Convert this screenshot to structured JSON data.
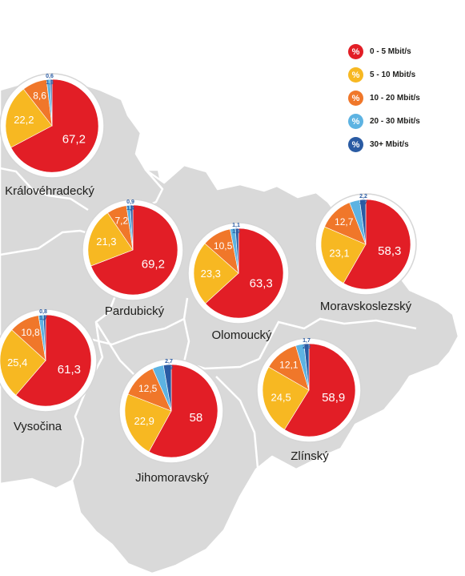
{
  "legend": {
    "items": [
      {
        "icon": "%",
        "label": "0 - 5 Mbit/s",
        "color": "#e21e26"
      },
      {
        "icon": "%",
        "label": "5 - 10 Mbit/s",
        "color": "#f7b822"
      },
      {
        "icon": "%",
        "label": "10 - 20 Mbit/s",
        "color": "#f0772a"
      },
      {
        "icon": "%",
        "label": "20 - 30 Mbit/s",
        "color": "#5db3e2"
      },
      {
        "icon": "%",
        "label": "30+ Mbit/s",
        "color": "#2a5ba3"
      }
    ]
  },
  "chart_data": [
    {
      "type": "pie",
      "title": "Královéhradecký",
      "categories": [
        "0 - 5 Mbit/s",
        "5 - 10 Mbit/s",
        "10 - 20 Mbit/s",
        "20 - 30 Mbit/s",
        "30+ Mbit/s"
      ],
      "values": [
        67.2,
        22.2,
        8.6,
        1.3,
        0.6
      ],
      "labels": [
        "67,2",
        "22,2",
        "8,6",
        "1,3",
        "0,6"
      ]
    },
    {
      "type": "pie",
      "title": "Pardubický",
      "categories": [
        "0 - 5 Mbit/s",
        "5 - 10 Mbit/s",
        "10 - 20 Mbit/s",
        "20 - 30 Mbit/s",
        "30+ Mbit/s"
      ],
      "values": [
        69.2,
        21.3,
        7.2,
        1.4,
        0.9
      ],
      "labels": [
        "69,2",
        "21,3",
        "7,2",
        "1,4",
        "0,9"
      ]
    },
    {
      "type": "pie",
      "title": "Olomoucký",
      "categories": [
        "0 - 5 Mbit/s",
        "5 - 10 Mbit/s",
        "10 - 20 Mbit/s",
        "20 - 30 Mbit/s",
        "30+ Mbit/s"
      ],
      "values": [
        63.3,
        23.3,
        10.5,
        1.9,
        1.1
      ],
      "labels": [
        "63,3",
        "23,3",
        "10,5",
        "1,9",
        "1,1"
      ]
    },
    {
      "type": "pie",
      "title": "Moravskoslezský",
      "categories": [
        "0 - 5 Mbit/s",
        "5 - 10 Mbit/s",
        "10 - 20 Mbit/s",
        "20 - 30 Mbit/s",
        "30+ Mbit/s"
      ],
      "values": [
        58.3,
        23.1,
        12.7,
        3.7,
        2.2
      ],
      "labels": [
        "58,3",
        "23,1",
        "12,7",
        "3,7",
        "2,2"
      ]
    },
    {
      "type": "pie",
      "title": "Vysočina",
      "categories": [
        "0 - 5 Mbit/s",
        "5 - 10 Mbit/s",
        "10 - 20 Mbit/s",
        "20 - 30 Mbit/s",
        "30+ Mbit/s"
      ],
      "values": [
        61.3,
        25.4,
        10.8,
        1.7,
        0.8
      ],
      "labels": [
        "61,3",
        "25,4",
        "10,8",
        "1,7",
        "0,8"
      ]
    },
    {
      "type": "pie",
      "title": "Jihomoravský",
      "categories": [
        "0 - 5 Mbit/s",
        "5 - 10 Mbit/s",
        "10 - 20 Mbit/s",
        "20 - 30 Mbit/s",
        "30+ Mbit/s"
      ],
      "values": [
        58,
        22.9,
        12.5,
        3.9,
        2.7
      ],
      "labels": [
        "58",
        "22,9",
        "12,5",
        "3,9",
        "2,7"
      ]
    },
    {
      "type": "pie",
      "title": "Zlínský",
      "categories": [
        "0 - 5 Mbit/s",
        "5 - 10 Mbit/s",
        "10 - 20 Mbit/s",
        "20 - 30 Mbit/s",
        "30+ Mbit/s"
      ],
      "values": [
        58.9,
        24.5,
        12.1,
        2.9,
        1.7
      ],
      "labels": [
        "58,9",
        "24,5",
        "12,1",
        "2,9",
        "1,7"
      ]
    }
  ]
}
